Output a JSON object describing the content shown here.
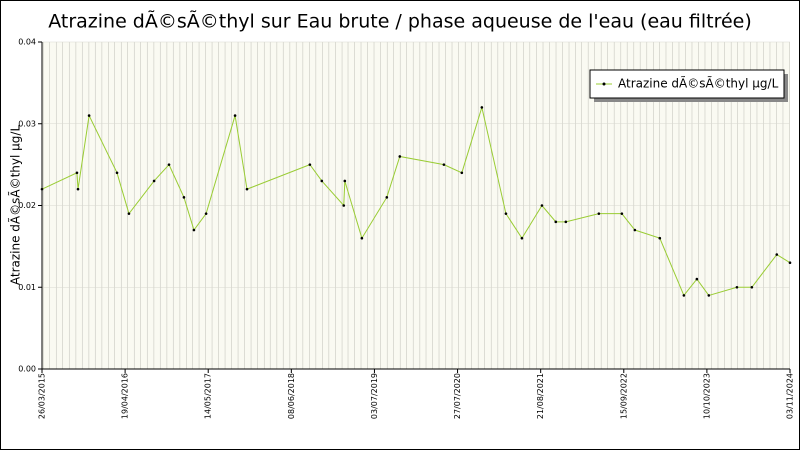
{
  "chart_data": {
    "type": "line",
    "title": "Atrazine dÃ©sÃ©thyl sur Eau brute / phase aqueuse de l'eau (eau filtrée)",
    "y_label": "Atrazine dÃ©sÃ©thyl µg/L",
    "x": [
      "2015-03-26",
      "2015-09-06",
      "2015-09-11",
      "2015-11-02",
      "2016-03-12",
      "2016-05-07",
      "2016-09-02",
      "2016-11-11",
      "2017-01-20",
      "2017-03-08",
      "2017-05-04",
      "2017-09-17",
      "2017-11-12",
      "2018-09-03",
      "2018-10-29",
      "2019-02-09",
      "2019-02-14",
      "2019-05-05",
      "2019-08-30",
      "2019-10-30",
      "2020-05-24",
      "2020-08-16",
      "2020-11-18",
      "2021-03-11",
      "2021-05-25",
      "2021-08-27",
      "2021-10-31",
      "2021-12-17",
      "2022-05-21",
      "2022-09-06",
      "2022-11-06",
      "2023-03-03",
      "2023-06-24",
      "2023-08-24",
      "2023-10-19",
      "2024-02-28",
      "2024-05-08",
      "2024-09-02",
      "2024-11-03"
    ],
    "series": [
      {
        "name": "Atrazine dÃ©sÃ©thyl µg/L",
        "color": "#99cc33",
        "values": [
          0.022,
          0.024,
          0.022,
          0.031,
          0.024,
          0.019,
          0.023,
          0.025,
          0.021,
          0.017,
          0.019,
          0.031,
          0.022,
          0.025,
          0.023,
          0.02,
          0.023,
          0.016,
          0.021,
          0.026,
          0.025,
          0.024,
          0.032,
          0.019,
          0.016,
          0.02,
          0.018,
          0.018,
          0.019,
          0.019,
          0.017,
          0.016,
          0.009,
          0.011,
          0.009,
          0.01,
          0.01,
          0.014,
          0.013
        ]
      }
    ],
    "xlim": [
      "2015-03-26",
      "2024-11-03"
    ],
    "xticks": [
      {
        "value": "2015-03-26",
        "label": "26/03/2015"
      },
      {
        "value": "2016-04-19",
        "label": "19/04/2016"
      },
      {
        "value": "2017-05-14",
        "label": "14/05/2017"
      },
      {
        "value": "2018-06-08",
        "label": "08/06/2018"
      },
      {
        "value": "2019-07-03",
        "label": "03/07/2019"
      },
      {
        "value": "2020-07-27",
        "label": "27/07/2020"
      },
      {
        "value": "2021-08-21",
        "label": "21/08/2021"
      },
      {
        "value": "2022-09-15",
        "label": "15/09/2022"
      },
      {
        "value": "2023-10-10",
        "label": "10/10/2023"
      },
      {
        "value": "2024-11-03",
        "label": "03/11/2024"
      }
    ],
    "ylim": [
      0,
      0.04
    ],
    "yticks": [
      {
        "value": 0,
        "label": "0.00"
      },
      {
        "value": 0.01,
        "label": "0.01"
      },
      {
        "value": 0.02,
        "label": "0.02"
      },
      {
        "value": 0.03,
        "label": "0.03"
      },
      {
        "value": 0.04,
        "label": "0.04"
      }
    ],
    "grid": true,
    "legend_position": "upper right"
  }
}
